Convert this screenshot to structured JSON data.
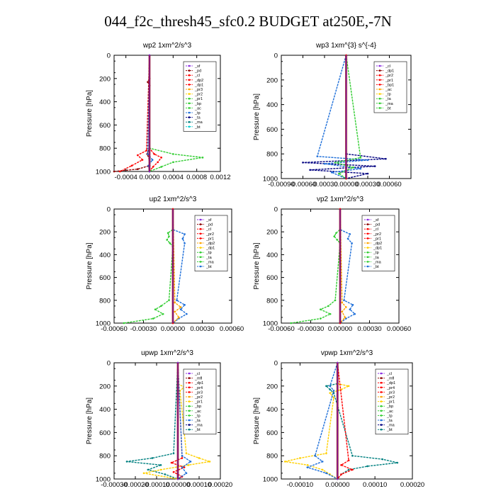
{
  "title": "044_f2c_thresh45_sfc0.2  BUDGET at250E,-7N",
  "colors": {
    "purple": "#8a2be2",
    "darkred": "#8b0000",
    "red": "#ff0000",
    "orange": "#ffa500",
    "yellow": "#ffd000",
    "green": "#32cd32",
    "blue": "#1e6fd9",
    "navy": "#000080",
    "teal": "#008080",
    "cyan": "#00ced1"
  },
  "chart_data": [
    {
      "type": "line",
      "title": "wp2   1xm^2/s^3",
      "ylabel": "Pressure [hPa]",
      "ylim": [
        1000,
        0
      ],
      "xlim": [
        -0.0006,
        0.0012
      ],
      "xticks": [
        -0.0004,
        0.0,
        0.0004,
        0.0008,
        0.0012
      ],
      "xticklabels": [
        "-0.0004",
        "0.0000",
        "0.0004",
        "0.0008",
        "0.0012"
      ],
      "yticks": [
        0,
        200,
        400,
        600,
        800,
        1000
      ],
      "legend": [
        "_sf",
        "_pd",
        "_cl",
        "_dp2",
        "_dp1",
        "_pr3",
        "_pr2",
        "_pr1",
        "_bp",
        "_ac",
        "_tp",
        "_ta",
        "_ma",
        "_bt"
      ],
      "series": [
        {
          "name": "_pd",
          "color": "darkred",
          "pressure": [
            0,
            200,
            230,
            260,
            800,
            850,
            900,
            950,
            980,
            1000
          ],
          "values": [
            0,
            0,
            -3e-05,
            0,
            0,
            -4e-05,
            0,
            0,
            -0.0002,
            -0.0006
          ]
        },
        {
          "name": "_cl",
          "color": "red",
          "pressure": [
            0,
            800,
            850,
            880,
            920,
            960,
            1000
          ],
          "values": [
            0,
            0,
            8e-05,
            0.0002,
            0.00014,
            6e-05,
            0
          ]
        },
        {
          "name": "_dp2",
          "color": "red",
          "pressure": [
            0,
            820,
            860,
            900,
            950,
            1000
          ],
          "values": [
            0,
            -5e-05,
            -0.0002,
            -0.00012,
            -0.0003,
            -0.0005
          ]
        },
        {
          "name": "_ac",
          "color": "green",
          "pressure": [
            0,
            800,
            850,
            880,
            920,
            960,
            1000
          ],
          "values": [
            0,
            0,
            0.0004,
            0.0009,
            0.0004,
            0.0002,
            0
          ]
        },
        {
          "name": "_tp",
          "color": "blue",
          "pressure": [
            0,
            850,
            900,
            950,
            1000
          ],
          "values": [
            0,
            -3e-05,
            5e-05,
            -2e-05,
            0
          ]
        },
        {
          "name": "_sf",
          "color": "purple",
          "pressure": [
            0,
            1000
          ],
          "values": [
            0,
            0
          ]
        }
      ]
    },
    {
      "type": "line",
      "title": "wp3   1xm^{3} s^{-4}",
      "ylabel": "Pressure [hPa]",
      "ylim": [
        1000,
        0
      ],
      "xlim": [
        -0.0009,
        0.0009
      ],
      "xticks": [
        -0.0009,
        -0.0006,
        -0.0003,
        0.0,
        0.0003,
        0.0006
      ],
      "xticklabels": [
        "-0.00090",
        "-0.00060",
        "-0.00030",
        "0.00000",
        "0.00030",
        "0.00060"
      ],
      "yticks": [
        0,
        200,
        400,
        600,
        800,
        1000
      ],
      "legend": [
        "_cl",
        "_dp1",
        "_pr2",
        "_pr1",
        "_bp1",
        "_ac",
        "_tp",
        "_ta",
        "_ma",
        "_bt"
      ],
      "series": [
        {
          "name": "_ta",
          "color": "navy",
          "pressure": [
            0,
            800,
            840,
            870,
            900,
            930,
            960,
            1000
          ],
          "values": [
            0,
            0,
            0.00055,
            -0.0006,
            0.0004,
            -0.0005,
            0.0003,
            0
          ]
        },
        {
          "name": "_tp",
          "color": "blue",
          "pressure": [
            0,
            820,
            850,
            880,
            920,
            950,
            1000
          ],
          "values": [
            0,
            -0.0004,
            0.0003,
            -0.0003,
            0.0002,
            -0.0002,
            0
          ]
        },
        {
          "name": "_ac",
          "color": "green",
          "pressure": [
            0,
            830,
            870,
            910,
            960,
            1000
          ],
          "values": [
            0,
            0.0002,
            -0.00015,
            0.0001,
            -0.0001,
            0
          ]
        },
        {
          "name": "_cl",
          "color": "red",
          "pressure": [
            0,
            1000
          ],
          "values": [
            0,
            0
          ]
        }
      ]
    },
    {
      "type": "line",
      "title": "up2   1xm^2/s^3",
      "ylabel": "Pressure [hPa]",
      "ylim": [
        1000,
        0
      ],
      "xlim": [
        -0.0006,
        0.0006
      ],
      "xticks": [
        -0.0006,
        -0.0003,
        0.0,
        0.0003,
        0.0006
      ],
      "xticklabels": [
        "-0.00060",
        "-0.00030",
        "0.00000",
        "0.00030",
        "0.00060"
      ],
      "yticks": [
        0,
        200,
        400,
        600,
        800,
        1000
      ],
      "legend": [
        "_sf",
        "_pd",
        "_cl",
        "_pr2",
        "_pr1",
        "_dp2",
        "_dp1",
        "_tp",
        "_ta",
        "_ma",
        "_bt"
      ],
      "series": [
        {
          "name": "_pr1",
          "color": "green",
          "pressure": [
            0,
            180,
            210,
            240,
            270,
            300,
            330,
            800,
            850,
            880,
            920,
            960,
            1000
          ],
          "values": [
            0,
            0,
            -5e-05,
            -4e-05,
            -6e-05,
            -3e-05,
            0,
            -4e-05,
            -0.00012,
            -0.00018,
            -0.0001,
            -0.0002,
            -0.0005
          ]
        },
        {
          "name": "_tp",
          "color": "blue",
          "pressure": [
            0,
            180,
            220,
            260,
            300,
            800,
            840,
            880,
            920,
            960,
            1000
          ],
          "values": [
            0,
            0,
            0.00012,
            0.0001,
            0.00012,
            4e-05,
            0.00012,
            8e-05,
            0.00014,
            6e-05,
            0
          ]
        },
        {
          "name": "_pr2",
          "color": "orange",
          "pressure": [
            0,
            820,
            860,
            900,
            950,
            1000
          ],
          "values": [
            0,
            2e-05,
            8e-05,
            2e-05,
            6e-05,
            0
          ]
        },
        {
          "name": "_pd",
          "color": "red",
          "pressure": [
            0,
            1000
          ],
          "values": [
            0,
            0
          ]
        }
      ]
    },
    {
      "type": "line",
      "title": "vp2   1xm^2/s^3",
      "ylabel": "Pressure [hPa]",
      "ylim": [
        1000,
        0
      ],
      "xlim": [
        -0.0006,
        0.0006
      ],
      "xticks": [
        -0.0006,
        -0.0003,
        0.0,
        0.0003,
        0.0006
      ],
      "xticklabels": [
        "-0.00060",
        "-0.00030",
        "0.00000",
        "0.00030",
        "0.00060"
      ],
      "yticks": [
        0,
        200,
        400,
        600,
        800,
        1000
      ],
      "legend": [
        "_sf",
        "_pd",
        "_cl",
        "_pr2",
        "_pr1",
        "_dp2",
        "_dp1",
        "_tp",
        "_ta",
        "_ma",
        "_bt"
      ],
      "series": [
        {
          "name": "_pr1",
          "color": "green",
          "pressure": [
            0,
            180,
            210,
            240,
            270,
            300,
            800,
            850,
            880,
            920,
            960,
            1000
          ],
          "values": [
            0,
            0,
            -4e-05,
            -6e-05,
            -3e-05,
            0,
            -5e-05,
            -0.00012,
            -0.0002,
            -0.0001,
            -0.0002,
            -0.0005
          ]
        },
        {
          "name": "_tp",
          "color": "blue",
          "pressure": [
            0,
            180,
            220,
            260,
            300,
            800,
            840,
            880,
            920,
            960,
            1000
          ],
          "values": [
            0,
            0,
            0.0001,
            8e-05,
            0.00012,
            4e-05,
            0.00013,
            0.0001,
            0.00015,
            6e-05,
            0
          ]
        },
        {
          "name": "_pr2",
          "color": "orange",
          "pressure": [
            0,
            820,
            860,
            900,
            950,
            1000
          ],
          "values": [
            0,
            2e-05,
            6e-05,
            2e-05,
            5e-05,
            0
          ]
        },
        {
          "name": "_pd",
          "color": "red",
          "pressure": [
            0,
            1000
          ],
          "values": [
            0,
            0
          ]
        }
      ]
    },
    {
      "type": "line",
      "title": "upwp   1xm^2/s^3",
      "ylabel": "Pressure [hPa]",
      "ylim": [
        1000,
        0
      ],
      "xlim": [
        -0.0003,
        0.0002
      ],
      "xticks": [
        -0.0003,
        -0.0002,
        -0.0001,
        0.0,
        0.0001,
        0.0002
      ],
      "xticklabels": [
        "-0.00030",
        "-0.00020",
        "-0.00010",
        "0.00000",
        "0.00010",
        "0.00020"
      ],
      "yticks": [
        0,
        200,
        400,
        600,
        800,
        1000
      ],
      "legend": [
        "_cl",
        "_mfl",
        "_dp1",
        "_pr4",
        "_pr3",
        "_pr2",
        "_pr1",
        "_bp",
        "_ac",
        "_tp",
        "_ta",
        "_ma",
        "_bt"
      ],
      "series": [
        {
          "name": "_ta",
          "color": "teal",
          "pressure": [
            0,
            780,
            820,
            850,
            880,
            920,
            960,
            1000
          ],
          "values": [
            0,
            -2e-05,
            -0.00012,
            -0.00024,
            -8e-05,
            -0.00014,
            -6e-05,
            0
          ]
        },
        {
          "name": "_pr1",
          "color": "yellow",
          "pressure": [
            0,
            180,
            210,
            240,
            780,
            820,
            850,
            880,
            920,
            950,
            1000
          ],
          "values": [
            0,
            0,
            3e-05,
            1e-05,
            4e-05,
            0.0001,
            0.00015,
            5e-05,
            -8e-05,
            -0.00016,
            0
          ]
        },
        {
          "name": "_dp1",
          "color": "red",
          "pressure": [
            0,
            820,
            860,
            900,
            940,
            980,
            1000
          ],
          "values": [
            0,
            2e-05,
            -3e-05,
            3e-05,
            -2e-05,
            2e-05,
            0
          ]
        },
        {
          "name": "_tp",
          "color": "blue",
          "pressure": [
            0,
            800,
            850,
            900,
            950,
            1000
          ],
          "values": [
            0,
            2e-05,
            6e-05,
            2e-05,
            4e-05,
            0
          ]
        },
        {
          "name": "_cl",
          "color": "purple",
          "pressure": [
            0,
            1000
          ],
          "values": [
            0,
            0
          ]
        }
      ]
    },
    {
      "type": "line",
      "title": "vpwp   1xm^2/s^3",
      "ylabel": "Pressure [hPa]",
      "ylim": [
        1000,
        0
      ],
      "xlim": [
        -0.00015,
        0.0002
      ],
      "xticks": [
        -0.0001,
        0.0,
        0.0001,
        0.0002
      ],
      "xticklabels": [
        "-0.00010",
        "0.00000",
        "0.00010",
        "0.00020"
      ],
      "yticks": [
        0,
        200,
        400,
        600,
        800,
        1000
      ],
      "legend": [
        "_cl",
        "_mfl",
        "_dp1",
        "_pr4",
        "_pr3",
        "_pr2",
        "_pr1",
        "_bp",
        "_ac",
        "_tp",
        "_ta",
        "_ma",
        "_bt"
      ],
      "series": [
        {
          "name": "_pr1",
          "color": "yellow",
          "pressure": [
            0,
            180,
            200,
            230,
            260,
            300,
            780,
            820,
            850,
            880,
            920,
            960,
            1000
          ],
          "values": [
            0,
            0,
            3e-05,
            1e-05,
            -2e-05,
            -1e-05,
            -3e-05,
            -0.0001,
            -0.00014,
            -8e-05,
            -4e-05,
            -2e-05,
            0
          ]
        },
        {
          "name": "_ta",
          "color": "teal",
          "pressure": [
            0,
            180,
            200,
            230,
            260,
            800,
            830,
            860,
            890,
            920,
            960,
            1000
          ],
          "values": [
            0,
            0,
            -3e-05,
            -2e-05,
            -1e-05,
            4e-05,
            0.00012,
            0.00016,
            8e-05,
            3e-05,
            1e-05,
            0
          ]
        },
        {
          "name": "_tp",
          "color": "blue",
          "pressure": [
            0,
            200,
            240,
            800,
            850,
            900,
            950,
            1000
          ],
          "values": [
            0,
            -2e-05,
            -1e-05,
            -6e-05,
            -4e-05,
            -8e-05,
            -3e-05,
            0
          ]
        },
        {
          "name": "_dp1",
          "color": "red",
          "pressure": [
            0,
            840,
            880,
            920,
            960,
            1000
          ],
          "values": [
            0,
            3e-05,
            1e-05,
            4e-05,
            1e-05,
            0
          ]
        },
        {
          "name": "_cl",
          "color": "purple",
          "pressure": [
            0,
            1000
          ],
          "values": [
            0,
            0
          ]
        }
      ]
    }
  ]
}
